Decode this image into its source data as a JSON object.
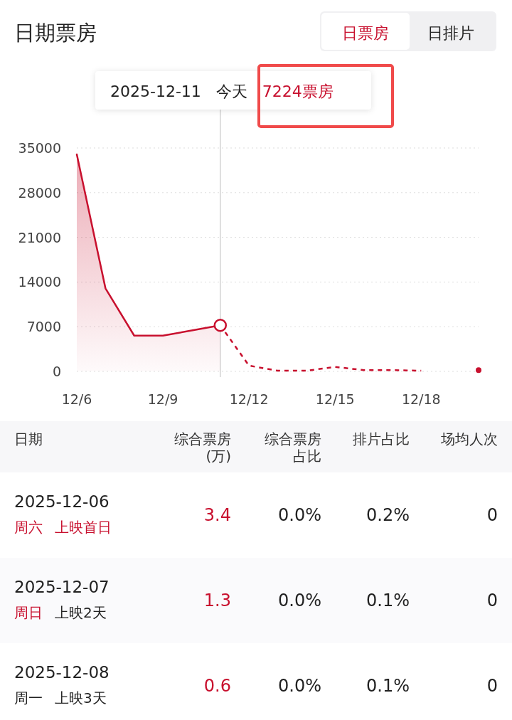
{
  "chart_data": [
    {
      "type": "area",
      "title": "日期票房",
      "subtitle": "日票房 日排片",
      "xlim": [
        "--12-06",
        "--12-20"
      ],
      "xticks": [
        {
          "value": "--12-06",
          "label": "12/6"
        },
        {
          "value": "--12-09",
          "label": "12/9"
        },
        {
          "value": "--12-12",
          "label": "12/12"
        },
        {
          "value": "--12-15",
          "label": "12/15"
        },
        {
          "value": "--12-18",
          "label": "12/18"
        }
      ],
      "ylim": [
        0,
        35000
      ],
      "yticks": [
        0,
        7000,
        14000,
        21000,
        28000,
        35000
      ],
      "grid": "y",
      "series": [
        {
          "type": "area",
          "color": "#c8102e",
          "line_style": "solid",
          "x": [
            "--12-06",
            "--12-07",
            "--12-08",
            "--12-09",
            "--12-10",
            "--12-11"
          ],
          "values": [
            34000,
            13000,
            5600,
            5600,
            6400,
            7224
          ]
        },
        {
          "type": "line",
          "color": "#c8102e",
          "line_style": "dashed",
          "x": [
            "--12-11",
            "--12-12",
            "--12-13",
            "--12-14",
            "--12-15",
            "--12-16",
            "--12-17",
            "--12-18",
            "--12-19",
            "--12-20"
          ],
          "values": [
            7224,
            900,
            100,
            100,
            700,
            200,
            200,
            100,
            null,
            200
          ]
        }
      ],
      "ref_lines": [
        {
          "axis": "x",
          "value": "--12-11",
          "color": "#bbbbbb"
        }
      ],
      "annotations": [
        "2025-12-11 今天 7224票房"
      ]
    },
    {
      "type": "other",
      "annotations": [
        "日期",
        "综合票房(万)",
        "综合票房占比",
        "排片占比",
        "场均人次",
        "2025-12-06",
        "周六",
        "上映首日",
        "3.4",
        "0.0%",
        "0.2%",
        "0",
        "2025-12-07",
        "周日",
        "上映2天",
        "1.3",
        "0.0%",
        "0.1%",
        "0",
        "2025-12-08",
        "周一",
        "上映3天",
        "0.6",
        "0.0%",
        "0.1%",
        "0"
      ]
    }
  ]
}
